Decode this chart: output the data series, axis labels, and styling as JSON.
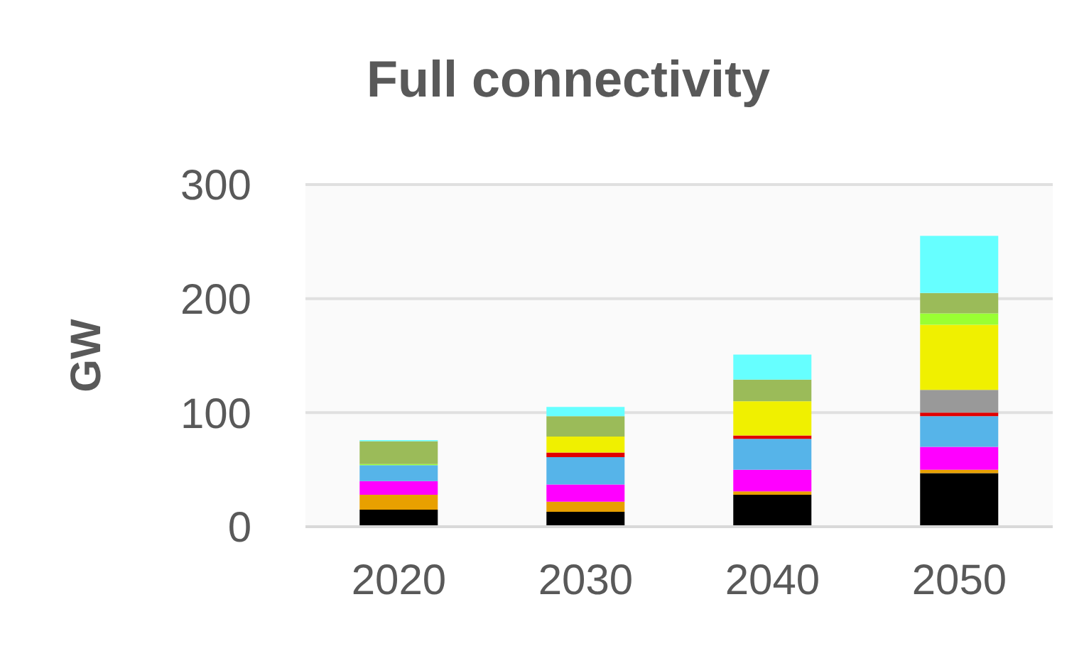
{
  "chart_data": {
    "type": "bar",
    "title": "Full connectivity",
    "ylabel": "GW",
    "stacked": true,
    "categories": [
      "2020",
      "2030",
      "2040",
      "2050"
    ],
    "series": [
      {
        "color": "#000000",
        "values": [
          15,
          13,
          28,
          47
        ]
      },
      {
        "color": "#e8a000",
        "values": [
          13,
          9,
          3,
          3
        ]
      },
      {
        "color": "#ff00ff",
        "values": [
          12,
          15,
          19,
          20
        ]
      },
      {
        "color": "#56b4e9",
        "values": [
          14,
          24,
          27,
          27
        ]
      },
      {
        "color": "#e00000",
        "values": [
          null,
          4,
          3,
          3
        ]
      },
      {
        "color": "#999999",
        "values": [
          null,
          null,
          null,
          20
        ]
      },
      {
        "color": "#f0f000",
        "values": [
          null,
          14,
          30,
          57
        ]
      },
      {
        "color": "#99ff33",
        "values": [
          1,
          null,
          null,
          10
        ]
      },
      {
        "color": "#9bbb59",
        "values": [
          20,
          18,
          19,
          18
        ]
      },
      {
        "color": "#66ffff",
        "values": [
          1,
          8,
          22,
          50
        ]
      }
    ],
    "ylim": [
      0,
      300
    ],
    "yticks": [
      0,
      100,
      200,
      300
    ],
    "grid": "y",
    "legend": false
  }
}
